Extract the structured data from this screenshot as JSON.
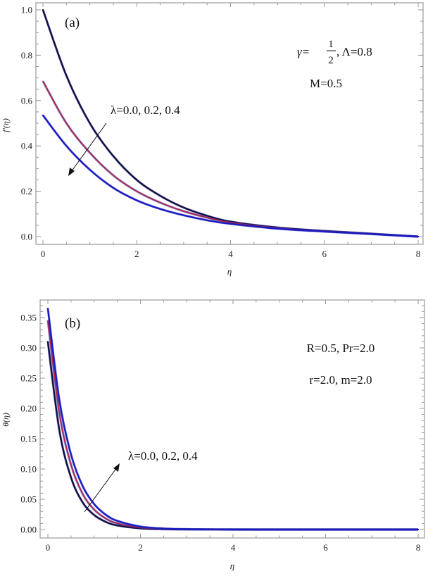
{
  "chart_data": [
    {
      "type": "line",
      "panel_label": "(a)",
      "xlabel": "η",
      "ylabel": "f'(η)",
      "xlim": [
        0,
        8
      ],
      "ylim": [
        0.0,
        1.0
      ],
      "x_ticks": [
        "0",
        "2",
        "4",
        "6",
        "8"
      ],
      "x_tick_values": [
        0,
        2,
        4,
        6,
        8
      ],
      "y_ticks": [
        "0.0",
        "0.2",
        "0.4",
        "0.6",
        "0.8",
        "1.0"
      ],
      "y_tick_values": [
        0.0,
        0.2,
        0.4,
        0.6,
        0.8,
        1.0
      ],
      "grid": false,
      "annotations": {
        "params_line1_prefix": "γ=",
        "params_frac_num": "1",
        "params_frac_den": "2",
        "params_line1_suffix": ", Λ=0.8",
        "params_line2": "M=0.5",
        "lambda_label": "λ=0.0, 0.2, 0.4",
        "arrow_direction": "down-left (increasing λ)"
      },
      "series": [
        {
          "name": "λ=0.0",
          "color": "#0e0e4a",
          "x": [
            0,
            0.5,
            1,
            1.5,
            2,
            2.5,
            3,
            3.5,
            4,
            5,
            6,
            7,
            8
          ],
          "y": [
            1.0,
            0.71,
            0.5,
            0.355,
            0.25,
            0.18,
            0.128,
            0.092,
            0.066,
            0.04,
            0.025,
            0.013,
            0.0
          ]
        },
        {
          "name": "λ=0.2",
          "color": "#b0203c",
          "x": [
            0,
            0.5,
            1,
            1.5,
            2,
            2.5,
            3,
            3.5,
            4,
            5,
            6,
            7,
            8
          ],
          "y": [
            0.685,
            0.5,
            0.37,
            0.27,
            0.2,
            0.15,
            0.112,
            0.084,
            0.062,
            0.038,
            0.024,
            0.012,
            0.0
          ]
        },
        {
          "name": "λ=0.4",
          "color": "#1a1ac4",
          "x": [
            0,
            0.5,
            1,
            1.5,
            2,
            2.5,
            3,
            3.5,
            4,
            5,
            6,
            7,
            8
          ],
          "y": [
            0.535,
            0.4,
            0.295,
            0.215,
            0.16,
            0.122,
            0.094,
            0.072,
            0.056,
            0.035,
            0.022,
            0.011,
            0.0
          ]
        }
      ]
    },
    {
      "type": "line",
      "panel_label": "(b)",
      "xlabel": "η",
      "ylabel": "θ(η)",
      "xlim": [
        0,
        8
      ],
      "ylim": [
        0.0,
        0.37
      ],
      "x_ticks": [
        "0",
        "2",
        "4",
        "6",
        "8"
      ],
      "x_tick_values": [
        0,
        2,
        4,
        6,
        8
      ],
      "y_ticks": [
        "0.00",
        "0.05",
        "0.10",
        "0.15",
        "0.20",
        "0.25",
        "0.30",
        "0.35"
      ],
      "y_tick_values": [
        0.0,
        0.05,
        0.1,
        0.15,
        0.2,
        0.25,
        0.3,
        0.35
      ],
      "grid": false,
      "annotations": {
        "params_line1": "R=0.5, Pr=2.0",
        "params_line2": "r=2.0, m=2.0",
        "lambda_label": "λ=0.0, 0.2, 0.4",
        "arrow_direction": "up-right (increasing λ)"
      },
      "series": [
        {
          "name": "λ=0.0",
          "color": "#0e0e4a",
          "x": [
            0,
            0.25,
            0.5,
            0.75,
            1,
            1.25,
            1.5,
            2,
            2.5,
            3,
            4,
            5,
            6,
            8
          ],
          "y": [
            0.31,
            0.163,
            0.086,
            0.045,
            0.024,
            0.0127,
            0.0067,
            0.0019,
            0.0005,
            0.0002,
            0.0,
            0.0,
            0.0,
            0.0
          ]
        },
        {
          "name": "λ=0.2",
          "color": "#b0203c",
          "x": [
            0,
            0.25,
            0.5,
            0.75,
            1,
            1.25,
            1.5,
            2,
            2.5,
            3,
            4,
            5,
            6,
            8
          ],
          "y": [
            0.345,
            0.192,
            0.107,
            0.059,
            0.033,
            0.0183,
            0.0102,
            0.0032,
            0.001,
            0.0003,
            0.0,
            0.0,
            0.0,
            0.0
          ]
        },
        {
          "name": "λ=0.4",
          "color": "#1a1ac4",
          "x": [
            0,
            0.25,
            0.5,
            0.75,
            1,
            1.25,
            1.5,
            2,
            2.5,
            3,
            4,
            5,
            6,
            8
          ],
          "y": [
            0.365,
            0.213,
            0.124,
            0.072,
            0.042,
            0.0245,
            0.0143,
            0.0049,
            0.0017,
            0.0006,
            0.0001,
            0.0,
            0.0,
            0.0
          ]
        }
      ]
    }
  ]
}
